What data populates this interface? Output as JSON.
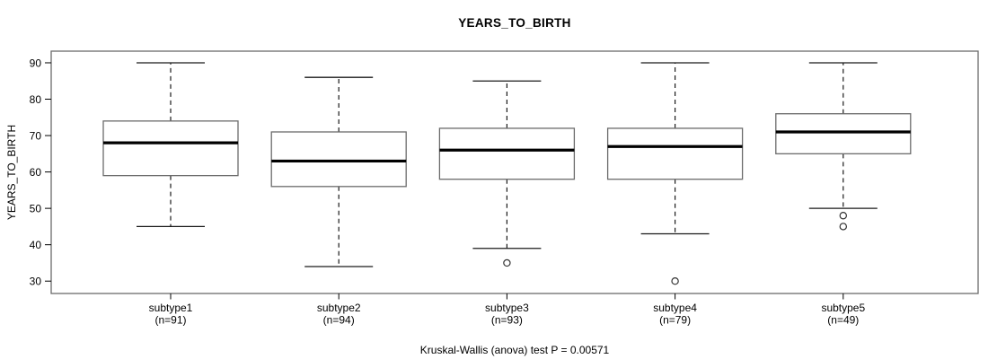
{
  "title": "YEARS_TO_BIRTH",
  "caption": "Kruskal-Wallis (anova) test P = 0.00571",
  "y_axis_label": "YEARS_TO_BIRTH",
  "colors": {
    "background": "#ffffff",
    "frame": "#6b6b6b",
    "box_border": "#6b6b6b",
    "box_fill": "#ffffff",
    "median": "#000000",
    "whisker": "#1a1a1a",
    "outlier": "#333333",
    "text": "#000000"
  },
  "chart_data": {
    "type": "boxplot",
    "title": "YEARS_TO_BIRTH",
    "xlabel": "",
    "ylabel": "YEARS_TO_BIRTH",
    "ylim": [
      26.6,
      93.2
    ],
    "y_ticks": [
      30,
      40,
      50,
      60,
      70,
      80,
      90
    ],
    "grid": "off",
    "legend": "none",
    "annotation": "Kruskal-Wallis (anova) test P = 0.00571",
    "categories": [
      {
        "label": "subtype1",
        "n_label": "(n=91)"
      },
      {
        "label": "subtype2",
        "n_label": "(n=94)"
      },
      {
        "label": "subtype3",
        "n_label": "(n=93)"
      },
      {
        "label": "subtype4",
        "n_label": "(n=79)"
      },
      {
        "label": "subtype5",
        "n_label": "(n=49)"
      }
    ],
    "series": [
      {
        "name": "subtype1",
        "n": 91,
        "whisker_low": 45,
        "q1": 59,
        "median": 68,
        "q3": 74,
        "whisker_high": 90,
        "outliers": []
      },
      {
        "name": "subtype2",
        "n": 94,
        "whisker_low": 34,
        "q1": 56,
        "median": 63,
        "q3": 71,
        "whisker_high": 86,
        "outliers": []
      },
      {
        "name": "subtype3",
        "n": 93,
        "whisker_low": 39,
        "q1": 58,
        "median": 66,
        "q3": 72,
        "whisker_high": 85,
        "outliers": [
          35
        ]
      },
      {
        "name": "subtype4",
        "n": 79,
        "whisker_low": 43,
        "q1": 58,
        "median": 67,
        "q3": 72,
        "whisker_high": 90,
        "outliers": [
          30
        ]
      },
      {
        "name": "subtype5",
        "n": 49,
        "whisker_low": 50,
        "q1": 65,
        "median": 71,
        "q3": 76,
        "whisker_high": 90,
        "outliers": [
          48,
          45
        ]
      }
    ]
  }
}
